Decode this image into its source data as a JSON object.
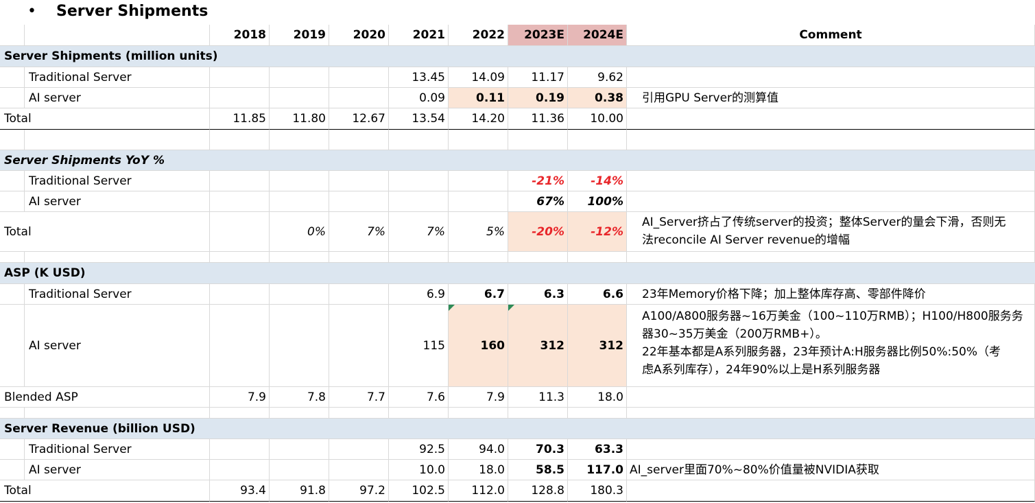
{
  "title": "Server Shipments",
  "bullet": "•",
  "columns": [
    "2018",
    "2019",
    "2020",
    "2021",
    "2022",
    "2023E",
    "2024E",
    "Comment"
  ],
  "colors": {
    "section_bg": "#dce6f0",
    "highlight": "#fbe5d6",
    "forecast_header": "#e6b8b7",
    "negative": "#e8262a"
  },
  "sections": {
    "shipments": "Server Shipments (million units)",
    "yoy": "Server Shipments YoY %",
    "asp": "ASP (K USD)",
    "revenue": "Server Revenue (billion USD)"
  },
  "chart_data": {
    "type": "table",
    "title": "Server Shipments",
    "rows": [
      {
        "label": "Traditional Server",
        "values": [
          "",
          "",
          "",
          "13.45",
          "14.09",
          "11.17",
          "9.62"
        ],
        "comment": ""
      },
      {
        "label": "AI server",
        "values": [
          "",
          "",
          "",
          "0.09",
          "0.11",
          "0.19",
          "0.38"
        ],
        "comment": "引用GPU Server的测算值"
      },
      {
        "label": "Total",
        "values": [
          "11.85",
          "11.80",
          "12.67",
          "13.54",
          "14.20",
          "11.36",
          "10.00"
        ],
        "comment": ""
      },
      {
        "label": "Traditional Server",
        "values": [
          "",
          "",
          "",
          "",
          "",
          "-21%",
          "-14%"
        ],
        "comment": ""
      },
      {
        "label": "AI server",
        "values": [
          "",
          "",
          "",
          "",
          "",
          "67%",
          "100%"
        ],
        "comment": ""
      },
      {
        "label": "Total",
        "values": [
          "",
          "0%",
          "7%",
          "7%",
          "5%",
          "-20%",
          "-12%"
        ],
        "comment": "AI_Server挤占了传统server的投资；整体Server的量会下滑，否则无法reconcile AI Server revenue的增幅"
      },
      {
        "label": "Traditional Server",
        "values": [
          "",
          "",
          "",
          "6.9",
          "6.7",
          "6.3",
          "6.6"
        ],
        "comment": "23年Memory价格下降；加上整体库存高、零部件降价"
      },
      {
        "label": "AI server",
        "values": [
          "",
          "",
          "",
          "115",
          "160",
          "312",
          "312"
        ],
        "comment": "A100/A800服务器~16万美金（100~110万RMB）；H100/H800服务器30~35万美金（200万RMB+）。22年基本都是A系列服务器，23年预计A:H服务器比例50%:50%（考虑A系列库存），24年90%以上是H系列服务器"
      },
      {
        "label": "Blended ASP",
        "values": [
          "7.9",
          "7.8",
          "7.7",
          "7.6",
          "7.9",
          "11.3",
          "18.0"
        ],
        "comment": ""
      },
      {
        "label": "Traditional Server",
        "values": [
          "",
          "",
          "",
          "92.5",
          "94.0",
          "70.3",
          "63.3"
        ],
        "comment": ""
      },
      {
        "label": "AI server",
        "values": [
          "",
          "",
          "",
          "10.0",
          "18.0",
          "58.5",
          "117.0"
        ],
        "comment": "AI_server里面70%~80%价值量被NVIDIA获取"
      },
      {
        "label": "Total",
        "values": [
          "93.4",
          "91.8",
          "97.2",
          "102.5",
          "112.0",
          "128.8",
          "180.3"
        ],
        "comment": ""
      }
    ]
  },
  "comment_lines": {
    "yoy_total": [
      "AI_Server挤占了传统server的投资；整体Server的量会下滑，否则无",
      "法reconcile AI Server revenue的增幅"
    ],
    "asp_ai": [
      "A100/A800服务器~16万美金（100~110万RMB）；H100/H800服务务",
      "器30~35万美金（200万RMB+）。",
      "22年基本都是A系列服务器，23年预计A:H服务器比例50%:50%（考",
      "虑A系列库存），24年90%以上是H系列服务器"
    ]
  }
}
